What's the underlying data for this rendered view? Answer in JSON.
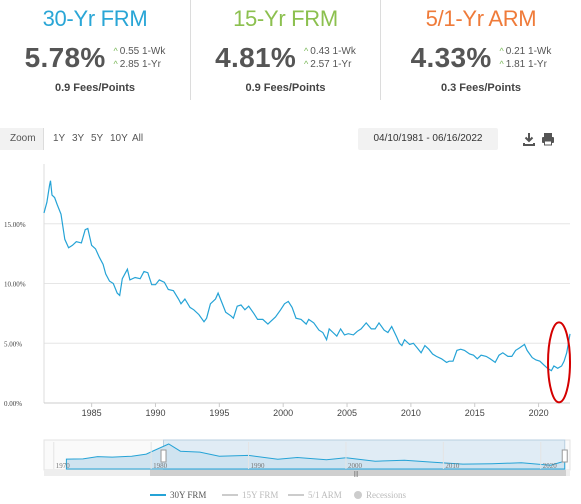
{
  "rates": [
    {
      "title": "30-Yr FRM",
      "value": "5.78%",
      "wk": "0.55 1-Wk",
      "yr": "2.85 1-Yr",
      "fees": "0.9 Fees/Points",
      "color": "#2aa6d6"
    },
    {
      "title": "15-Yr FRM",
      "value": "4.81%",
      "wk": "0.43 1-Wk",
      "yr": "2.57 1-Yr",
      "fees": "0.9 Fees/Points",
      "color": "#8cc04f"
    },
    {
      "title": "5/1-Yr ARM",
      "value": "4.33%",
      "wk": "0.21 1-Wk",
      "yr": "1.81 1-Yr",
      "fees": "0.3 Fees/Points",
      "color": "#ef7b3a"
    }
  ],
  "toolbar": {
    "zoom_label": "Zoom",
    "buttons": [
      "1Y",
      "3Y",
      "5Y",
      "10Y",
      "All"
    ],
    "date_range": "04/10/1981 - 06/16/2022"
  },
  "icons": {
    "download": "download-icon",
    "print": "print-icon"
  },
  "colors": {
    "line": "#25a3d6",
    "navigator_fill": "#d4e6f2",
    "highlight": "#d40000"
  },
  "legend": [
    {
      "label": "30Y FRM",
      "color": "#25a3d6",
      "active": true
    },
    {
      "label": "15Y FRM",
      "color": "#cccccc",
      "active": false
    },
    {
      "label": "5/1 ARM",
      "color": "#cccccc",
      "active": false
    },
    {
      "label": "Recessions",
      "color": "#cccccc",
      "active": false
    }
  ],
  "chart_data": {
    "type": "line",
    "title": "",
    "xlabel": "",
    "ylabel": "",
    "series": [
      {
        "name": "30Y FRM",
        "points": [
          [
            1981.27,
            15.9
          ],
          [
            1981.5,
            16.8
          ],
          [
            1981.7,
            18.2
          ],
          [
            1981.78,
            18.6
          ],
          [
            1981.9,
            17.4
          ],
          [
            1982.1,
            17.2
          ],
          [
            1982.3,
            16.6
          ],
          [
            1982.6,
            15.8
          ],
          [
            1982.9,
            13.7
          ],
          [
            1983.2,
            13.0
          ],
          [
            1983.5,
            13.2
          ],
          [
            1983.8,
            13.5
          ],
          [
            1984.2,
            13.4
          ],
          [
            1984.5,
            14.5
          ],
          [
            1984.7,
            14.6
          ],
          [
            1985.0,
            13.2
          ],
          [
            1985.3,
            12.9
          ],
          [
            1985.6,
            12.2
          ],
          [
            1985.9,
            11.6
          ],
          [
            1986.1,
            10.8
          ],
          [
            1986.4,
            10.2
          ],
          [
            1986.7,
            10.0
          ],
          [
            1987.0,
            9.2
          ],
          [
            1987.2,
            9.0
          ],
          [
            1987.4,
            10.4
          ],
          [
            1987.8,
            11.2
          ],
          [
            1988.0,
            10.3
          ],
          [
            1988.4,
            10.5
          ],
          [
            1988.8,
            10.4
          ],
          [
            1989.1,
            11.0
          ],
          [
            1989.4,
            10.9
          ],
          [
            1989.7,
            9.9
          ],
          [
            1990.0,
            9.9
          ],
          [
            1990.3,
            10.3
          ],
          [
            1990.7,
            10.1
          ],
          [
            1991.0,
            9.5
          ],
          [
            1991.4,
            9.4
          ],
          [
            1991.8,
            8.7
          ],
          [
            1992.0,
            8.3
          ],
          [
            1992.3,
            8.7
          ],
          [
            1992.7,
            8.0
          ],
          [
            1993.0,
            7.8
          ],
          [
            1993.4,
            7.4
          ],
          [
            1993.8,
            6.8
          ],
          [
            1994.0,
            7.1
          ],
          [
            1994.3,
            8.3
          ],
          [
            1994.7,
            8.7
          ],
          [
            1994.9,
            9.2
          ],
          [
            1995.2,
            8.4
          ],
          [
            1995.5,
            7.6
          ],
          [
            1995.9,
            7.3
          ],
          [
            1996.1,
            7.1
          ],
          [
            1996.4,
            8.1
          ],
          [
            1996.7,
            8.2
          ],
          [
            1997.0,
            7.8
          ],
          [
            1997.3,
            8.1
          ],
          [
            1997.7,
            7.5
          ],
          [
            1998.0,
            7.0
          ],
          [
            1998.4,
            7.0
          ],
          [
            1998.8,
            6.6
          ],
          [
            1999.0,
            6.8
          ],
          [
            1999.4,
            7.2
          ],
          [
            1999.8,
            7.8
          ],
          [
            2000.1,
            8.3
          ],
          [
            2000.4,
            8.5
          ],
          [
            2000.7,
            8.0
          ],
          [
            2001.0,
            7.1
          ],
          [
            2001.4,
            7.0
          ],
          [
            2001.8,
            6.6
          ],
          [
            2002.0,
            7.0
          ],
          [
            2002.4,
            6.7
          ],
          [
            2002.8,
            6.1
          ],
          [
            2003.1,
            5.9
          ],
          [
            2003.4,
            5.3
          ],
          [
            2003.6,
            6.2
          ],
          [
            2003.9,
            5.9
          ],
          [
            2004.2,
            5.6
          ],
          [
            2004.5,
            6.2
          ],
          [
            2004.8,
            5.7
          ],
          [
            2005.1,
            5.8
          ],
          [
            2005.5,
            5.7
          ],
          [
            2005.8,
            6.0
          ],
          [
            2006.1,
            6.2
          ],
          [
            2006.5,
            6.7
          ],
          [
            2006.9,
            6.2
          ],
          [
            2007.2,
            6.2
          ],
          [
            2007.5,
            6.7
          ],
          [
            2007.9,
            6.1
          ],
          [
            2008.2,
            5.9
          ],
          [
            2008.5,
            6.4
          ],
          [
            2008.9,
            5.5
          ],
          [
            2009.1,
            5.0
          ],
          [
            2009.3,
            4.8
          ],
          [
            2009.5,
            5.3
          ],
          [
            2009.9,
            4.9
          ],
          [
            2010.2,
            5.0
          ],
          [
            2010.5,
            4.6
          ],
          [
            2010.8,
            4.2
          ],
          [
            2011.1,
            4.8
          ],
          [
            2011.4,
            4.5
          ],
          [
            2011.7,
            4.1
          ],
          [
            2012.0,
            3.9
          ],
          [
            2012.4,
            3.7
          ],
          [
            2012.8,
            3.4
          ],
          [
            2013.0,
            3.5
          ],
          [
            2013.3,
            3.5
          ],
          [
            2013.6,
            4.4
          ],
          [
            2013.9,
            4.5
          ],
          [
            2014.2,
            4.4
          ],
          [
            2014.6,
            4.1
          ],
          [
            2014.9,
            4.0
          ],
          [
            2015.2,
            3.7
          ],
          [
            2015.5,
            4.0
          ],
          [
            2015.9,
            3.9
          ],
          [
            2016.2,
            3.7
          ],
          [
            2016.6,
            3.4
          ],
          [
            2016.9,
            4.0
          ],
          [
            2017.2,
            4.2
          ],
          [
            2017.6,
            3.9
          ],
          [
            2017.9,
            3.9
          ],
          [
            2018.2,
            4.4
          ],
          [
            2018.5,
            4.6
          ],
          [
            2018.9,
            4.9
          ],
          [
            2019.1,
            4.4
          ],
          [
            2019.5,
            3.8
          ],
          [
            2019.8,
            3.6
          ],
          [
            2020.1,
            3.5
          ],
          [
            2020.4,
            3.2
          ],
          [
            2020.7,
            2.9
          ],
          [
            2021.0,
            2.7
          ],
          [
            2021.2,
            3.1
          ],
          [
            2021.5,
            2.9
          ],
          [
            2021.8,
            3.1
          ],
          [
            2022.0,
            3.5
          ],
          [
            2022.2,
            4.2
          ],
          [
            2022.35,
            5.1
          ],
          [
            2022.46,
            5.78
          ]
        ]
      }
    ],
    "xticks": [
      1985,
      1990,
      1995,
      2000,
      2005,
      2010,
      2015,
      2020
    ],
    "yticks": [
      {
        "value": 0,
        "label": "0.00%"
      },
      {
        "value": 5,
        "label": "5.00%"
      },
      {
        "value": 10,
        "label": "10.00%"
      },
      {
        "value": 15,
        "label": "15.00%"
      }
    ],
    "xlim": [
      1981.27,
      2022.46
    ],
    "ylim": [
      0,
      20
    ],
    "grid": "horizontal",
    "annotation": "red circle around 2021-2022 rise",
    "navigator": {
      "xticks": [
        1970,
        1980,
        1990,
        2000,
        2010,
        2020
      ],
      "xlim": [
        1969,
        2023
      ],
      "selected": [
        1981.27,
        2022.46
      ],
      "points": [
        [
          1971.3,
          7.3
        ],
        [
          1973,
          7.5
        ],
        [
          1974.5,
          9.2
        ],
        [
          1976,
          8.8
        ],
        [
          1978,
          9.5
        ],
        [
          1979.5,
          11.0
        ],
        [
          1980.3,
          13.7
        ],
        [
          1981.8,
          18.5
        ],
        [
          1983,
          13.2
        ],
        [
          1985,
          12.5
        ],
        [
          1987,
          9.5
        ],
        [
          1990,
          10.1
        ],
        [
          1993,
          7.2
        ],
        [
          1995,
          8.5
        ],
        [
          1998,
          6.9
        ],
        [
          2000,
          8.4
        ],
        [
          2003,
          5.8
        ],
        [
          2006,
          6.5
        ],
        [
          2009,
          5.0
        ],
        [
          2012,
          3.6
        ],
        [
          2015,
          3.9
        ],
        [
          2018,
          4.6
        ],
        [
          2021,
          2.8
        ],
        [
          2022.46,
          5.78
        ]
      ]
    }
  }
}
